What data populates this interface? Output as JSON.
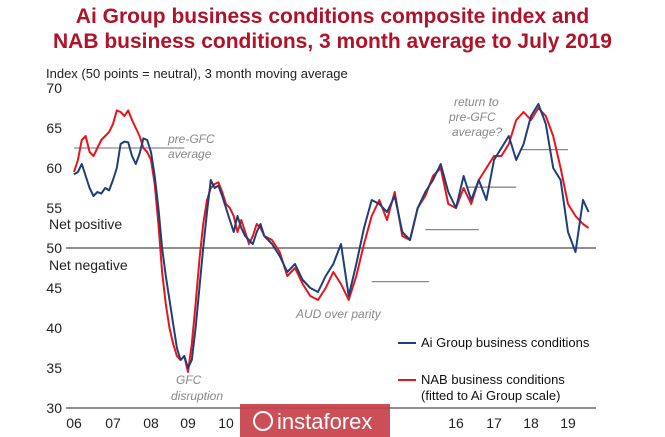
{
  "chart_data": {
    "type": "line",
    "title_line1": "Ai Group business conditions composite index  and",
    "title_line2": "NAB business conditions, 3 month average to July 2019",
    "ylabel": "Index (50 points = neutral), 3 month moving average",
    "ylim": [
      30,
      70
    ],
    "y_ticks": [
      "70",
      "65",
      "60",
      "55",
      "50",
      "45",
      "40",
      "35",
      "30"
    ],
    "x_ticks": [
      "06",
      "07",
      "08",
      "09",
      "10",
      "16",
      "17",
      "18",
      "19"
    ],
    "region_labels": {
      "positive": "Net positive",
      "negative": "Net negative"
    },
    "annotations": {
      "pre_gfc": [
        "pre-GFC",
        "average"
      ],
      "gfc": [
        "GFC",
        "disruption"
      ],
      "aud": "AUD over parity",
      "return": [
        "return to",
        "pre-GFC",
        "average?"
      ]
    },
    "reference_lines": [
      {
        "from": 2006.0,
        "to": 2008.9,
        "y": 62.5
      },
      {
        "from": 2015.2,
        "to": 2016.6,
        "y": 52.3
      },
      {
        "from": 2013.8,
        "to": 2015.3,
        "y": 45.8
      },
      {
        "from": 2016.3,
        "to": 2017.6,
        "y": 57.6
      },
      {
        "from": 2017.7,
        "to": 2019.0,
        "y": 62.3
      }
    ],
    "legend": [
      "Ai Group business conditions",
      "NAB business conditions",
      "(fitted to Ai Group scale)"
    ],
    "colors": {
      "ai": "#1f3f7a",
      "nab": "#e8151b",
      "title": "#b0122a",
      "watermark": "#c8404a"
    },
    "series": [
      {
        "name": "Ai Group business conditions",
        "x": [
          2006.0,
          2006.1,
          2006.2,
          2006.3,
          2006.4,
          2006.5,
          2006.6,
          2006.7,
          2006.8,
          2006.9,
          2007.0,
          2007.1,
          2007.2,
          2007.3,
          2007.4,
          2007.5,
          2007.6,
          2007.7,
          2007.8,
          2007.9,
          2008.0,
          2008.1,
          2008.2,
          2008.3,
          2008.4,
          2008.5,
          2008.6,
          2008.7,
          2008.8,
          2008.9,
          2009.0,
          2009.1,
          2009.2,
          2009.3,
          2009.4,
          2009.5,
          2009.6,
          2009.7,
          2009.8,
          2009.9,
          2010.0,
          2010.1,
          2010.2,
          2010.3,
          2010.4,
          2010.5,
          2010.6,
          2010.7,
          2010.8,
          2010.9,
          2011.0,
          2011.2,
          2011.4,
          2011.6,
          2011.8,
          2012.0,
          2012.2,
          2012.4,
          2012.6,
          2012.8,
          2013.0,
          2013.2,
          2013.4,
          2013.6,
          2013.8,
          2014.0,
          2014.2,
          2014.4,
          2014.6,
          2014.8,
          2015.0,
          2015.2,
          2015.4,
          2015.6,
          2015.8,
          2016.0,
          2016.2,
          2016.4,
          2016.6,
          2016.8,
          2017.0,
          2017.2,
          2017.4,
          2017.6,
          2017.8,
          2018.0,
          2018.2,
          2018.4,
          2018.6,
          2018.8,
          2019.0,
          2019.2,
          2019.4,
          2019.55
        ],
        "values": [
          59.2,
          59.5,
          60.5,
          59.0,
          57.5,
          56.5,
          57.0,
          56.8,
          57.5,
          57.2,
          58.5,
          60.0,
          63.0,
          63.3,
          63.2,
          61.5,
          60.5,
          61.8,
          63.7,
          63.5,
          62.0,
          59.0,
          55.0,
          50.0,
          46.5,
          43.5,
          40.5,
          37.5,
          36.0,
          36.5,
          35.0,
          36.0,
          40.0,
          45.0,
          50.0,
          54.5,
          58.5,
          57.5,
          57.8,
          56.5,
          55.0,
          53.5,
          52.0,
          54.0,
          52.5,
          51.5,
          51.0,
          50.5,
          52.0,
          53.0,
          51.5,
          50.5,
          49.0,
          47.0,
          48.0,
          46.0,
          45.0,
          44.5,
          46.5,
          48.0,
          50.5,
          44.0,
          48.0,
          52.5,
          56.0,
          55.5,
          54.5,
          56.5,
          52.0,
          51.0,
          55.0,
          57.0,
          58.5,
          60.5,
          57.0,
          55.0,
          59.0,
          56.0,
          58.5,
          56.0,
          61.0,
          62.5,
          64.0,
          61.0,
          63.0,
          66.5,
          68.0,
          65.5,
          60.0,
          58.5,
          52.0,
          49.5,
          56.0,
          54.5
        ]
      },
      {
        "name": "NAB business conditions",
        "x": [
          2006.0,
          2006.1,
          2006.2,
          2006.3,
          2006.4,
          2006.5,
          2006.6,
          2006.7,
          2006.8,
          2006.9,
          2007.0,
          2007.1,
          2007.2,
          2007.3,
          2007.4,
          2007.5,
          2007.6,
          2007.7,
          2007.8,
          2007.9,
          2008.0,
          2008.1,
          2008.2,
          2008.3,
          2008.4,
          2008.5,
          2008.6,
          2008.7,
          2008.8,
          2008.9,
          2009.0,
          2009.1,
          2009.2,
          2009.3,
          2009.4,
          2009.5,
          2009.6,
          2009.7,
          2009.8,
          2009.9,
          2010.0,
          2010.1,
          2010.2,
          2010.3,
          2010.4,
          2010.5,
          2010.6,
          2010.7,
          2010.8,
          2010.9,
          2011.0,
          2011.2,
          2011.4,
          2011.6,
          2011.8,
          2012.0,
          2012.2,
          2012.4,
          2012.6,
          2012.8,
          2013.0,
          2013.2,
          2013.4,
          2013.6,
          2013.8,
          2014.0,
          2014.2,
          2014.4,
          2014.6,
          2014.8,
          2015.0,
          2015.2,
          2015.4,
          2015.6,
          2015.8,
          2016.0,
          2016.2,
          2016.4,
          2016.6,
          2016.8,
          2017.0,
          2017.2,
          2017.4,
          2017.6,
          2017.8,
          2018.0,
          2018.2,
          2018.4,
          2018.6,
          2018.8,
          2019.0,
          2019.2,
          2019.4,
          2019.55
        ],
        "values": [
          59.5,
          61.0,
          63.5,
          64.0,
          62.0,
          61.5,
          62.5,
          63.5,
          64.0,
          64.5,
          65.5,
          67.2,
          67.0,
          66.5,
          67.2,
          66.0,
          65.0,
          64.0,
          62.5,
          62.0,
          61.0,
          58.0,
          53.0,
          47.0,
          43.0,
          40.0,
          38.0,
          36.5,
          36.0,
          36.5,
          34.5,
          38.0,
          43.0,
          48.5,
          53.0,
          56.0,
          57.5,
          58.0,
          58.2,
          57.0,
          55.5,
          55.0,
          54.0,
          52.0,
          53.5,
          52.0,
          50.5,
          51.5,
          53.0,
          52.5,
          51.5,
          51.0,
          49.5,
          46.5,
          47.5,
          45.5,
          44.0,
          43.5,
          45.0,
          47.0,
          45.5,
          43.5,
          46.5,
          50.5,
          54.0,
          56.0,
          53.5,
          57.0,
          51.5,
          51.0,
          55.0,
          56.5,
          59.0,
          60.0,
          55.5,
          55.0,
          57.5,
          55.5,
          58.5,
          60.0,
          61.5,
          61.5,
          63.0,
          66.0,
          67.0,
          66.0,
          67.5,
          66.5,
          64.0,
          60.0,
          55.5,
          54.0,
          53.0,
          52.5
        ]
      }
    ]
  },
  "watermark": {
    "text": "instaforex"
  }
}
